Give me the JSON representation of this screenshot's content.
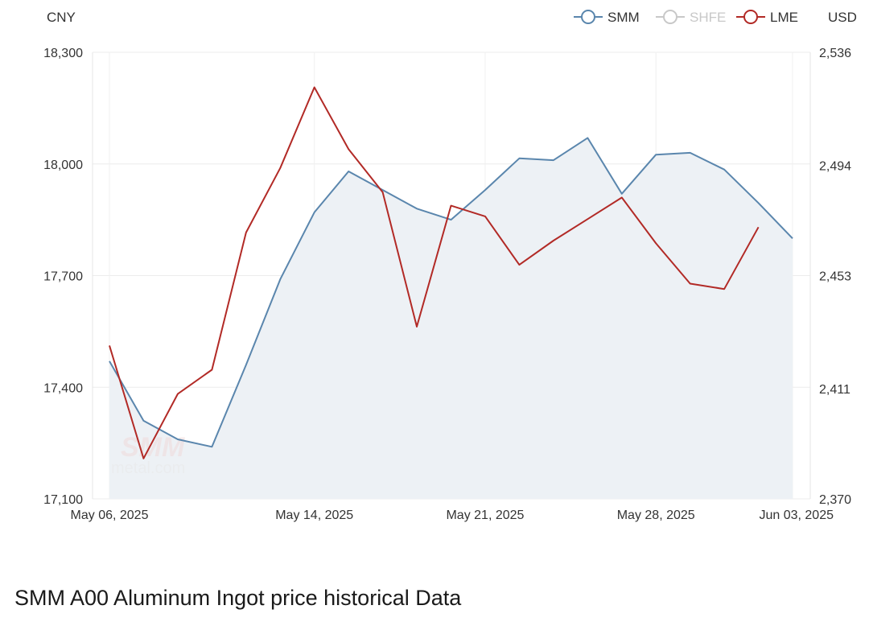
{
  "chart_data": {
    "type": "line",
    "title": "SMM A00 Aluminum Ingot price historical Data",
    "left_axis_label": "CNY",
    "right_axis_label": "USD",
    "y_left": {
      "min": 17100,
      "max": 18300,
      "ticks": [
        "17,100",
        "17,400",
        "17,700",
        "18,000",
        "18,300"
      ],
      "tick_values": [
        17100,
        17400,
        17700,
        18000,
        18300
      ]
    },
    "y_right": {
      "min": 2370,
      "max": 2536,
      "ticks": [
        "2,370",
        "2,411",
        "2,453",
        "2,494",
        "2,536"
      ],
      "tick_values": [
        2370,
        2411,
        2453,
        2494,
        2536
      ]
    },
    "x_ticks": [
      {
        "label": "May 06, 2025",
        "date": "2025-05-06"
      },
      {
        "label": "May 14, 2025",
        "date": "2025-05-14"
      },
      {
        "label": "May 21, 2025",
        "date": "2025-05-21"
      },
      {
        "label": "May 28, 2025",
        "date": "2025-05-28"
      },
      {
        "label": "Jun 03, 2025",
        "date": "2025-06-03"
      }
    ],
    "grid": true,
    "legend_position": "top-right",
    "legend": [
      {
        "name": "SMM",
        "color": "#5a86ad",
        "active": true
      },
      {
        "name": "SHFE",
        "color": "#c8c8c8",
        "active": false
      },
      {
        "name": "LME",
        "color": "#b22a26",
        "active": true
      }
    ],
    "series": [
      {
        "name": "SMM",
        "axis": "left",
        "color": "#5a86ad",
        "fill": "#edf1f5",
        "points": [
          {
            "x": "2025-05-06",
            "y": 17470
          },
          {
            "x": "2025-05-07",
            "y": 17310
          },
          {
            "x": "2025-05-08",
            "y": 17260
          },
          {
            "x": "2025-05-09",
            "y": 17240
          },
          {
            "x": "2025-05-12",
            "y": 17460
          },
          {
            "x": "2025-05-13",
            "y": 17690
          },
          {
            "x": "2025-05-14",
            "y": 17870
          },
          {
            "x": "2025-05-15",
            "y": 17980
          },
          {
            "x": "2025-05-16",
            "y": 17930
          },
          {
            "x": "2025-05-19",
            "y": 17880
          },
          {
            "x": "2025-05-20",
            "y": 17850
          },
          {
            "x": "2025-05-21",
            "y": 17930
          },
          {
            "x": "2025-05-22",
            "y": 18015
          },
          {
            "x": "2025-05-23",
            "y": 18010
          },
          {
            "x": "2025-05-26",
            "y": 18070
          },
          {
            "x": "2025-05-27",
            "y": 17920
          },
          {
            "x": "2025-05-28",
            "y": 18025
          },
          {
            "x": "2025-05-29",
            "y": 18030
          },
          {
            "x": "2025-05-30",
            "y": 17985
          },
          {
            "x": "2025-06-02",
            "y": 17895
          },
          {
            "x": "2025-06-03",
            "y": 17800
          }
        ]
      },
      {
        "name": "LME",
        "axis": "right",
        "color": "#b22a26",
        "points": [
          {
            "x": "2025-05-06",
            "y": 2427
          },
          {
            "x": "2025-05-07",
            "y": 2385
          },
          {
            "x": "2025-05-08",
            "y": 2409
          },
          {
            "x": "2025-05-09",
            "y": 2418
          },
          {
            "x": "2025-05-12",
            "y": 2469
          },
          {
            "x": "2025-05-13",
            "y": 2493
          },
          {
            "x": "2025-05-14",
            "y": 2523
          },
          {
            "x": "2025-05-15",
            "y": 2500
          },
          {
            "x": "2025-05-16",
            "y": 2484
          },
          {
            "x": "2025-05-19",
            "y": 2434
          },
          {
            "x": "2025-05-20",
            "y": 2479
          },
          {
            "x": "2025-05-21",
            "y": 2475
          },
          {
            "x": "2025-05-22",
            "y": 2457
          },
          {
            "x": "2025-05-23",
            "y": 2466
          },
          {
            "x": "2025-05-26",
            "y": 2474
          },
          {
            "x": "2025-05-27",
            "y": 2482
          },
          {
            "x": "2025-05-28",
            "y": 2465
          },
          {
            "x": "2025-05-29",
            "y": 2450
          },
          {
            "x": "2025-05-30",
            "y": 2448
          },
          {
            "x": "2025-06-02",
            "y": 2471
          }
        ]
      }
    ]
  },
  "watermark": {
    "brand": "SMM",
    "site": "metal.com"
  }
}
